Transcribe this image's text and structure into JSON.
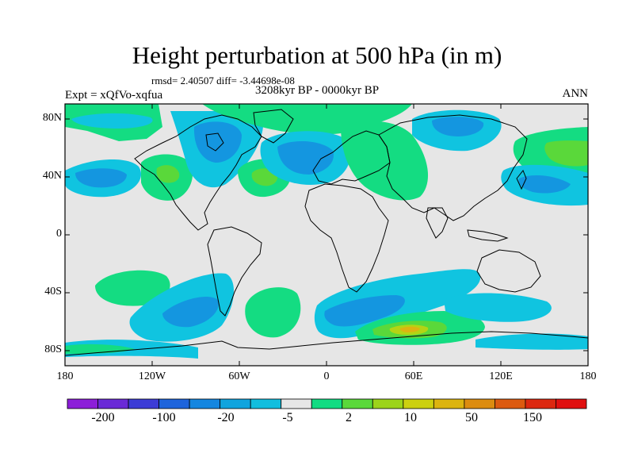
{
  "title": "Height perturbation at 500 hPa (in m)",
  "stats": "rmsd= 2.40507 diff= -3.44698e-08",
  "period": "3208kyr BP - 0000kyr BP",
  "experiment": "Expt = xQfVo-xqfua",
  "season": "ANN",
  "lat_ticks": [
    "80N",
    "40N",
    "0",
    "40S",
    "80S"
  ],
  "lon_ticks": [
    "180",
    "120W",
    "60W",
    "0",
    "60E",
    "120E",
    "180"
  ],
  "colorbar": {
    "labels": [
      "-200",
      "-100",
      "-20",
      "-5",
      "2",
      "10",
      "50",
      "150"
    ],
    "colors": [
      "#8c1ed8",
      "#6a2ad6",
      "#3c3cd6",
      "#1e64dc",
      "#1486e0",
      "#10a4de",
      "#12bede",
      "#e6e6e6",
      "#12dc82",
      "#5ad83a",
      "#9cd41a",
      "#ccd010",
      "#dcb410",
      "#dc8c10",
      "#dc5a10",
      "#dc2810",
      "#e01010"
    ]
  },
  "map_colors": {
    "land_bg": "#e6e6e6",
    "neg_light": "#10c4e0",
    "neg_mid": "#1496e0",
    "neg_strong": "#1e6edc",
    "pos_light": "#14dc82",
    "pos_mid": "#5ad83a",
    "pos_strong": "#b4d414",
    "pos_peak": "#dcb410",
    "coast": "#000000"
  }
}
